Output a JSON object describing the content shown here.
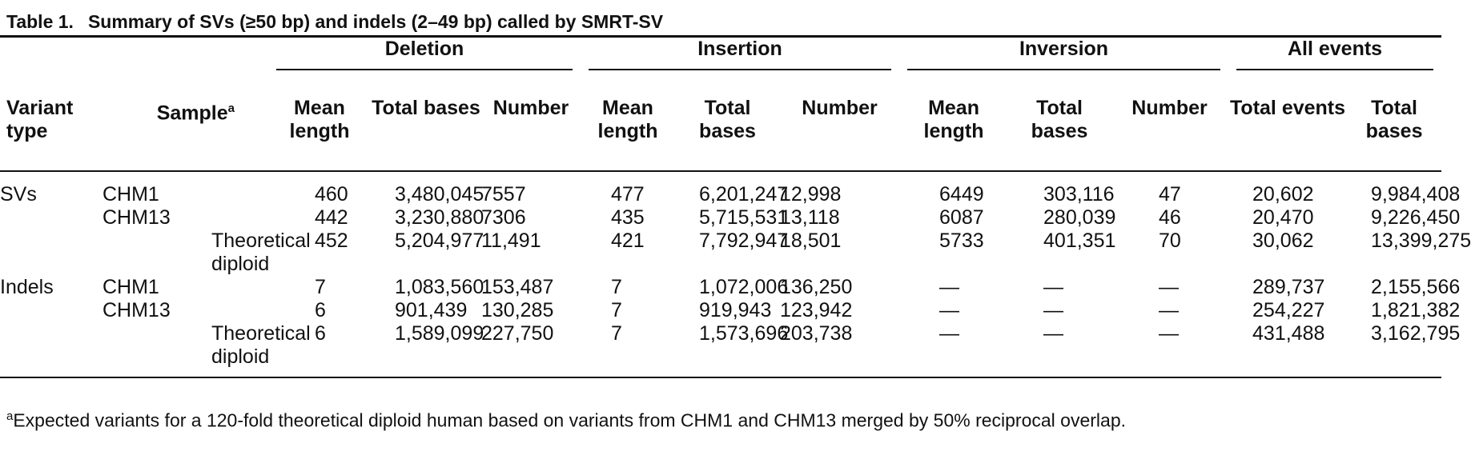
{
  "caption": {
    "label": "Table 1.",
    "title": "Summary of SVs (≥50 bp) and indels (2–49 bp) called by SMRT-SV"
  },
  "groups": [
    "Deletion",
    "Insertion",
    "Inversion",
    "All events"
  ],
  "headers": {
    "variant_type": "Variant type",
    "sample": "Sample",
    "sample_mark": "a",
    "deletion": [
      "Mean length",
      "Total bases",
      "Number"
    ],
    "insertion": [
      "Mean length",
      "Total bases",
      "Number"
    ],
    "inversion": [
      "Mean length",
      "Total bases",
      "Number"
    ],
    "all": [
      "Total events",
      "Total bases"
    ]
  },
  "rows": [
    {
      "type": "SVs",
      "sample": "CHM1",
      "d_ml": "460",
      "d_tb": "3,480,045",
      "d_n": "7557",
      "i_ml": "477",
      "i_tb": "6,201,247",
      "i_n": "12,998",
      "v_ml": "6449",
      "v_tb": "303,116",
      "v_n": "47",
      "a_te": "20,602",
      "a_tb": "9,984,408"
    },
    {
      "type": "",
      "sample": "CHM13",
      "d_ml": "442",
      "d_tb": "3,230,880",
      "d_n": "7306",
      "i_ml": "435",
      "i_tb": "5,715,531",
      "i_n": "13,118",
      "v_ml": "6087",
      "v_tb": "280,039",
      "v_n": "46",
      "a_te": "20,470",
      "a_tb": "9,226,450"
    },
    {
      "type": "",
      "sample": "Theoretical diploid",
      "d_ml": "452",
      "d_tb": "5,204,977",
      "d_n": "11,491",
      "i_ml": "421",
      "i_tb": "7,792,947",
      "i_n": "18,501",
      "v_ml": "5733",
      "v_tb": "401,351",
      "v_n": "70",
      "a_te": "30,062",
      "a_tb": "13,399,275"
    },
    {
      "type": "Indels",
      "sample": "CHM1",
      "d_ml": "7",
      "d_tb": "1,083,560",
      "d_n": "153,487",
      "i_ml": "7",
      "i_tb": "1,072,006",
      "i_n": "136,250",
      "v_ml": "—",
      "v_tb": "—",
      "v_n": "—",
      "a_te": "289,737",
      "a_tb": "2,155,566"
    },
    {
      "type": "",
      "sample": "CHM13",
      "d_ml": "6",
      "d_tb": "901,439",
      "d_n": "130,285",
      "i_ml": "7",
      "i_tb": "919,943",
      "i_n": "123,942",
      "v_ml": "—",
      "v_tb": "—",
      "v_n": "—",
      "a_te": "254,227",
      "a_tb": "1,821,382"
    },
    {
      "type": "",
      "sample": "Theoretical diploid",
      "d_ml": "6",
      "d_tb": "1,589,099",
      "d_n": "227,750",
      "i_ml": "7",
      "i_tb": "1,573,696",
      "i_n": "203,738",
      "v_ml": "—",
      "v_tb": "—",
      "v_n": "—",
      "a_te": "431,488",
      "a_tb": "3,162,795"
    }
  ],
  "footnote": {
    "mark": "a",
    "text": "Expected variants for a 120-fold theoretical diploid human based on variants from CHM1 and CHM13 merged by 50% reciprocal overlap."
  }
}
